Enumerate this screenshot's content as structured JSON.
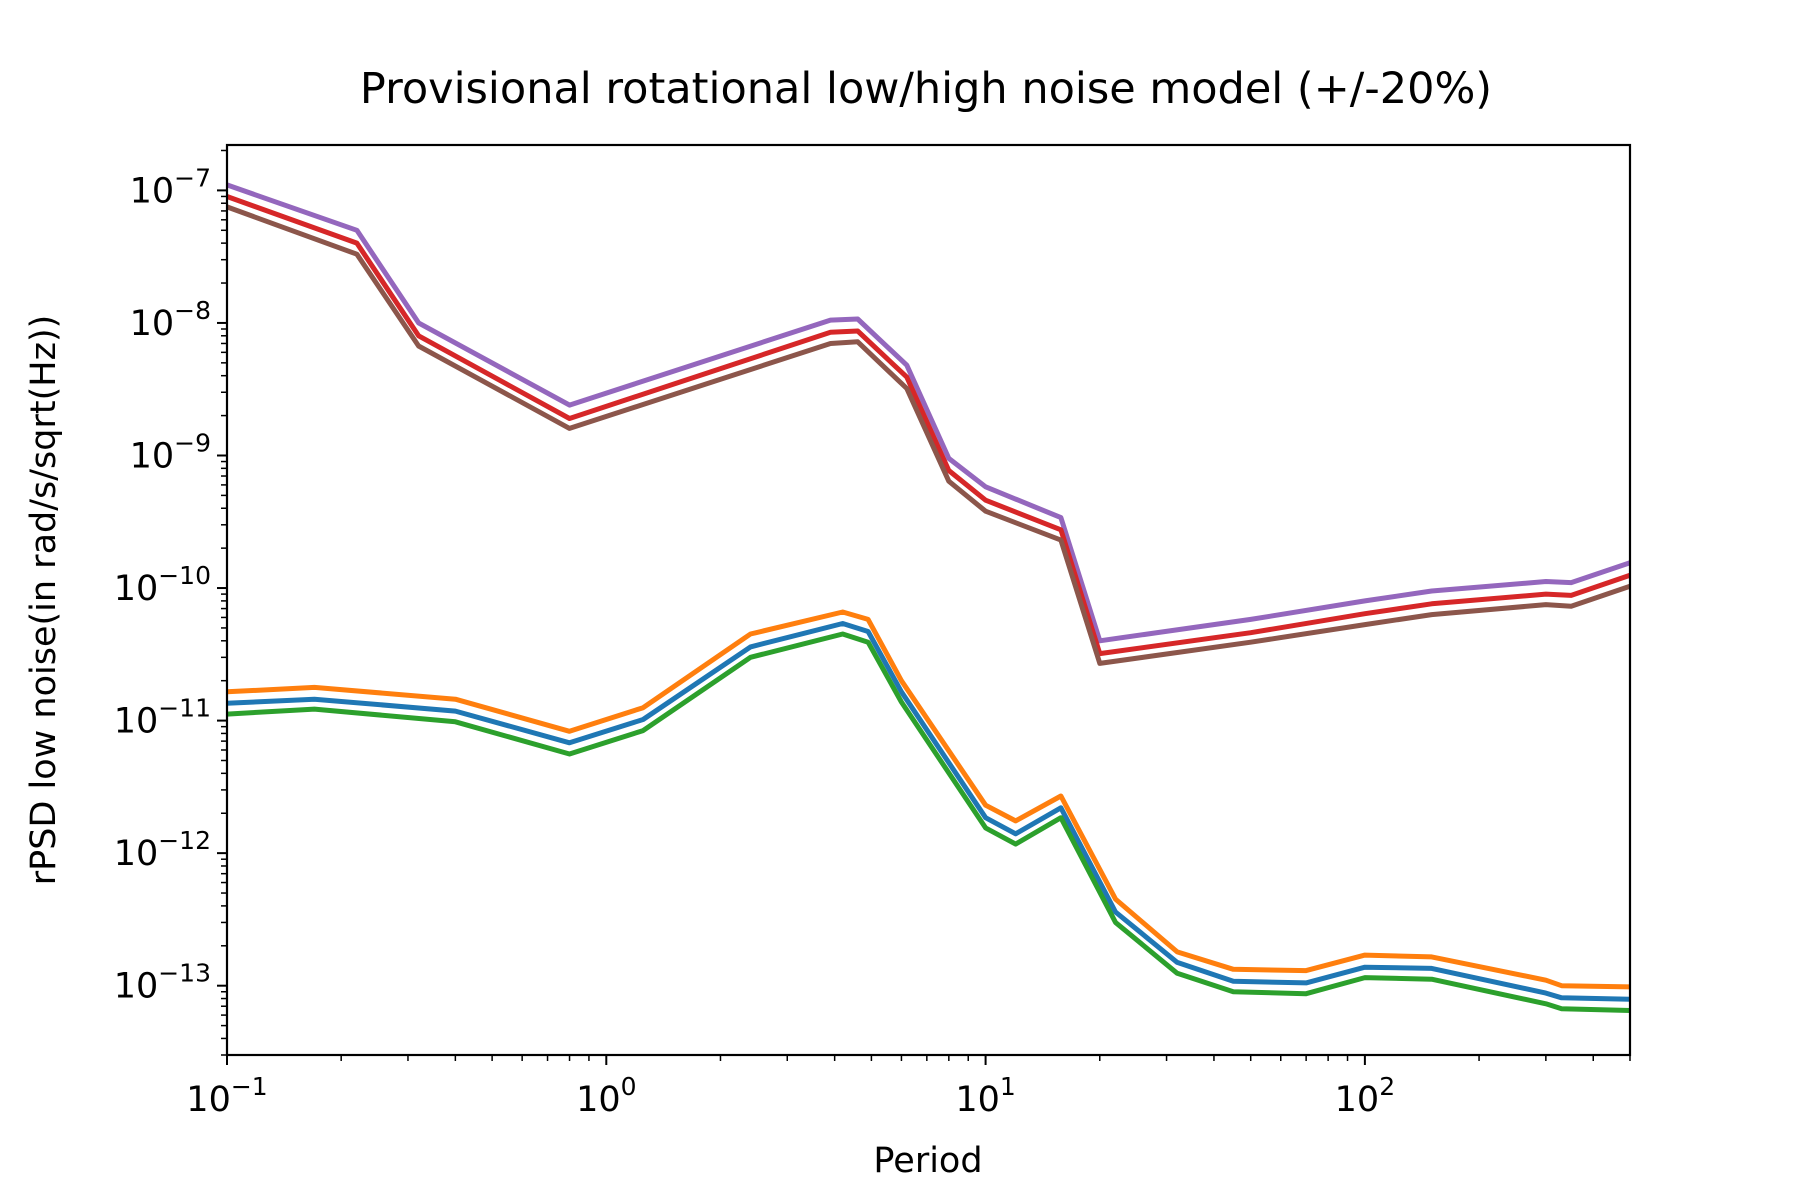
{
  "chart_data": {
    "type": "line",
    "title": "Provisional rotational low/high noise model (+/-20%)",
    "xlabel": "Period",
    "ylabel": "rPSD low noise(in rad/s/sqrt(Hz))",
    "xscale": "log",
    "yscale": "log",
    "xlim": [
      0.1,
      500
    ],
    "ylim": [
      3e-14,
      2.2e-07
    ],
    "grid": false,
    "legend": "none",
    "x_ticks": [
      {
        "value": 0.1,
        "base": "10",
        "exp": "−1"
      },
      {
        "value": 1,
        "base": "10",
        "exp": "0"
      },
      {
        "value": 10,
        "base": "10",
        "exp": "1"
      },
      {
        "value": 100,
        "base": "10",
        "exp": "2"
      }
    ],
    "y_ticks": [
      {
        "value": 1e-07,
        "base": "10",
        "exp": "−7"
      },
      {
        "value": 1e-08,
        "base": "10",
        "exp": "−8"
      },
      {
        "value": 1e-09,
        "base": "10",
        "exp": "−9"
      },
      {
        "value": 1e-10,
        "base": "10",
        "exp": "−10"
      },
      {
        "value": 1e-11,
        "base": "10",
        "exp": "−11"
      },
      {
        "value": 1e-12,
        "base": "10",
        "exp": "−12"
      },
      {
        "value": 1e-13,
        "base": "10",
        "exp": "−13"
      }
    ],
    "series": [
      {
        "color": "#9467bd",
        "x": [
          0.1,
          0.22,
          0.32,
          0.8,
          3.9,
          4.6,
          6.2,
          8,
          10,
          15.8,
          20,
          50,
          100,
          150,
          300,
          350,
          500
        ],
        "y": [
          1.1e-07,
          5e-08,
          1e-08,
          2.4e-09,
          1.05e-08,
          1.07e-08,
          4.8e-09,
          9.5e-10,
          5.8e-10,
          3.4e-10,
          4e-11,
          5.8e-11,
          8e-11,
          9.5e-11,
          1.12e-10,
          1.1e-10,
          1.55e-10
        ]
      },
      {
        "color": "#d62728",
        "x": [
          0.1,
          0.22,
          0.32,
          0.8,
          3.9,
          4.6,
          6.2,
          8,
          10,
          15.8,
          20,
          50,
          100,
          150,
          300,
          350,
          500
        ],
        "y": [
          9e-08,
          4e-08,
          8e-09,
          1.9e-09,
          8.5e-09,
          8.7e-09,
          3.9e-09,
          7.7e-10,
          4.6e-10,
          2.75e-10,
          3.2e-11,
          4.6e-11,
          6.4e-11,
          7.6e-11,
          9e-11,
          8.8e-11,
          1.25e-10
        ]
      },
      {
        "color": "#8c564b",
        "x": [
          0.1,
          0.22,
          0.32,
          0.8,
          3.9,
          4.6,
          6.2,
          8,
          10,
          15.8,
          20,
          50,
          100,
          150,
          300,
          350,
          500
        ],
        "y": [
          7.5e-08,
          3.3e-08,
          6.7e-09,
          1.6e-09,
          7e-09,
          7.2e-09,
          3.2e-09,
          6.4e-10,
          3.8e-10,
          2.3e-10,
          2.7e-11,
          3.9e-11,
          5.3e-11,
          6.3e-11,
          7.5e-11,
          7.3e-11,
          1.03e-10
        ]
      },
      {
        "color": "#ff7f0e",
        "x": [
          0.1,
          0.17,
          0.4,
          0.8,
          1.25,
          2.4,
          4.2,
          4.9,
          6,
          10,
          12,
          15.8,
          22,
          32,
          45,
          70,
          100,
          150,
          300,
          330,
          500
        ],
        "y": [
          1.65e-11,
          1.78e-11,
          1.45e-11,
          8.3e-12,
          1.25e-11,
          4.5e-11,
          6.6e-11,
          5.8e-11,
          2e-11,
          2.3e-12,
          1.75e-12,
          2.7e-12,
          4.5e-13,
          1.8e-13,
          1.33e-13,
          1.3e-13,
          1.7e-13,
          1.65e-13,
          1.1e-13,
          1e-13,
          9.8e-14
        ]
      },
      {
        "color": "#1f77b4",
        "x": [
          0.1,
          0.17,
          0.4,
          0.8,
          1.25,
          2.4,
          4.2,
          4.9,
          6,
          10,
          12,
          15.8,
          22,
          32,
          45,
          70,
          100,
          150,
          300,
          330,
          500
        ],
        "y": [
          1.35e-11,
          1.45e-11,
          1.18e-11,
          6.8e-12,
          1.02e-11,
          3.6e-11,
          5.4e-11,
          4.7e-11,
          1.65e-11,
          1.85e-12,
          1.4e-12,
          2.2e-12,
          3.6e-13,
          1.5e-13,
          1.08e-13,
          1.05e-13,
          1.38e-13,
          1.35e-13,
          8.8e-14,
          8.1e-14,
          7.9e-14
        ]
      },
      {
        "color": "#2ca02c",
        "x": [
          0.1,
          0.17,
          0.4,
          0.8,
          1.25,
          2.4,
          4.2,
          4.9,
          6,
          10,
          12,
          15.8,
          22,
          32,
          45,
          70,
          100,
          150,
          300,
          330,
          500
        ],
        "y": [
          1.12e-11,
          1.22e-11,
          9.8e-12,
          5.6e-12,
          8.4e-12,
          3e-11,
          4.5e-11,
          3.9e-11,
          1.38e-11,
          1.55e-12,
          1.17e-12,
          1.85e-12,
          3e-13,
          1.24e-13,
          9e-14,
          8.7e-14,
          1.15e-13,
          1.12e-13,
          7.3e-14,
          6.7e-14,
          6.5e-14
        ]
      }
    ]
  }
}
